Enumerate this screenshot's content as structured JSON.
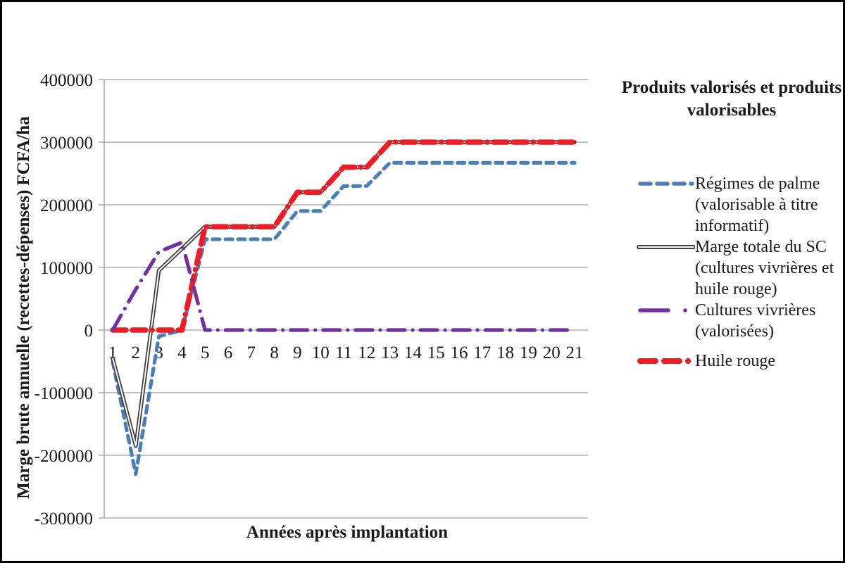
{
  "chart_data": {
    "type": "line",
    "title": "",
    "xlabel": "Années après implantation",
    "ylabel": "Marge brute annuelle (recettes-dépenses) FCFA/ha",
    "x": [
      1,
      2,
      3,
      4,
      5,
      6,
      7,
      8,
      9,
      10,
      11,
      12,
      13,
      14,
      15,
      16,
      17,
      18,
      19,
      20,
      21
    ],
    "ylim": [
      -300000,
      400000
    ],
    "yticks": [
      400000,
      300000,
      200000,
      100000,
      0,
      -100000,
      -200000,
      -300000
    ],
    "grid": "horizontal",
    "legend_position": "right",
    "legend_title": "Produits valorisés et produits valorisables",
    "axis_color": "#a1a1a1",
    "text_color": "#1a1a1a",
    "series": [
      {
        "name": "Régimes de palme (valorisable à titre informatif)",
        "color": "#4a7ebb",
        "style": "dashed",
        "values": [
          -50000,
          -230000,
          -10000,
          0,
          145000,
          145000,
          145000,
          145000,
          190000,
          190000,
          230000,
          230000,
          267000,
          267000,
          267000,
          267000,
          267000,
          267000,
          267000,
          267000,
          267000
        ]
      },
      {
        "name": "Marge totale du SC (cultures vivrières et huile rouge)",
        "color": "#3f3f3f",
        "style": "double",
        "values": [
          -45000,
          -185000,
          95000,
          130000,
          165000,
          165000,
          165000,
          165000,
          220000,
          220000,
          260000,
          260000,
          300000,
          300000,
          300000,
          300000,
          300000,
          300000,
          300000,
          300000,
          300000
        ]
      },
      {
        "name": "Cultures vivrières (valorisées)",
        "color": "#7030a0",
        "style": "dash-dot",
        "values": [
          0,
          65000,
          125000,
          140000,
          0,
          0,
          0,
          0,
          0,
          0,
          0,
          0,
          0,
          0,
          0,
          0,
          0,
          0,
          0,
          0,
          0
        ]
      },
      {
        "name": "Huile rouge",
        "color": "#ee1c25",
        "style": "thick-dash",
        "values": [
          0,
          0,
          0,
          0,
          165000,
          165000,
          165000,
          165000,
          220000,
          220000,
          260000,
          260000,
          300000,
          300000,
          300000,
          300000,
          300000,
          300000,
          300000,
          300000,
          300000
        ]
      }
    ]
  }
}
